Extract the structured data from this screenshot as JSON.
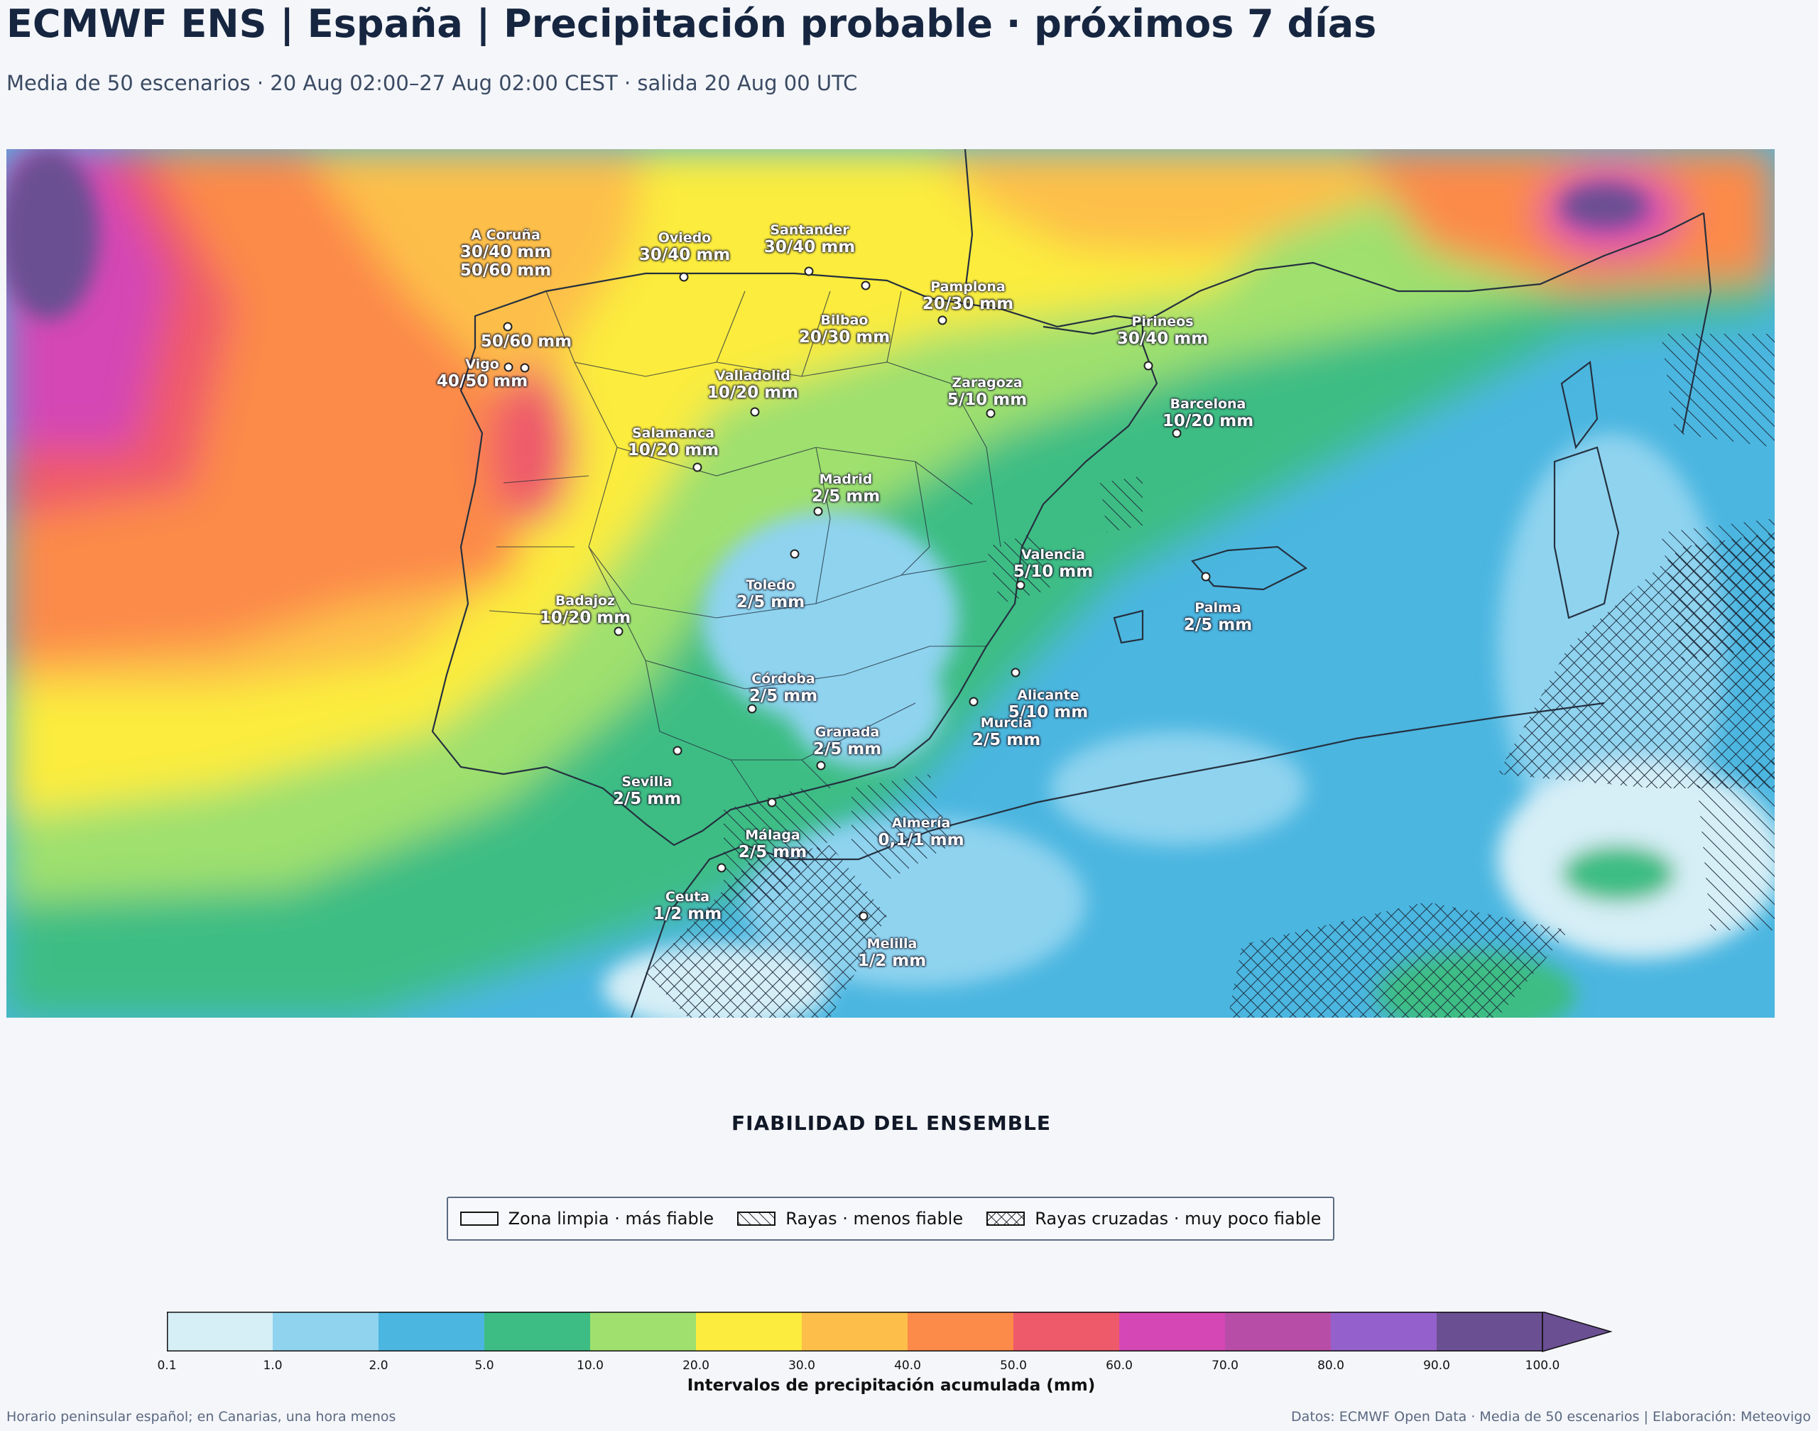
{
  "header": {
    "title": "ECMWF ENS | España | Precipitación probable · próximos 7 días",
    "subtitle": "Media de 50 escenarios · 20 Aug 02:00–27 Aug 02:00 CEST · salida 20 Aug 00 UTC"
  },
  "cities": [
    {
      "name": "A Coruña",
      "value": "30/40 mm",
      "value2": "50/60 mm"
    },
    {
      "name": "Oviedo",
      "value": "30/40 mm"
    },
    {
      "name": "Santander",
      "value": "30/40 mm"
    },
    {
      "name": "Pamplona",
      "value": "20/30 mm"
    },
    {
      "name": "Bilbao",
      "value": "20/30 mm"
    },
    {
      "name": "",
      "value": "50/60 mm"
    },
    {
      "name": "Pirineos",
      "value": "30/40 mm"
    },
    {
      "name": "Vigo",
      "value": "40/50 mm"
    },
    {
      "name": "Valladolid",
      "value": "10/20 mm"
    },
    {
      "name": "Zaragoza",
      "value": "5/10 mm"
    },
    {
      "name": "Barcelona",
      "value": "10/20 mm"
    },
    {
      "name": "Salamanca",
      "value": "10/20 mm"
    },
    {
      "name": "Madrid",
      "value": "2/5 mm"
    },
    {
      "name": "Valencia",
      "value": "5/10 mm"
    },
    {
      "name": "Toledo",
      "value": "2/5 mm"
    },
    {
      "name": "Badajoz",
      "value": "10/20 mm"
    },
    {
      "name": "Palma",
      "value": "2/5 mm"
    },
    {
      "name": "Córdoba",
      "value": "2/5 mm"
    },
    {
      "name": "Alicante",
      "value": "5/10 mm"
    },
    {
      "name": "Murcia",
      "value": "2/5 mm"
    },
    {
      "name": "Granada",
      "value": "2/5 mm"
    },
    {
      "name": "Sevilla",
      "value": "2/5 mm"
    },
    {
      "name": "Almería",
      "value": "0,1/1 mm"
    },
    {
      "name": "Málaga",
      "value": "2/5 mm"
    },
    {
      "name": "Ceuta",
      "value": "1/2 mm"
    },
    {
      "name": "Melilla",
      "value": "1/2 mm"
    }
  ],
  "reliability": {
    "title": "FIABILIDAD DEL ENSEMBLE",
    "items": [
      {
        "label": "Zona limpia · más fiable"
      },
      {
        "label": "Rayas · menos fiable"
      },
      {
        "label": "Rayas cruzadas · muy poco fiable"
      }
    ]
  },
  "colorbar": {
    "label": "Intervalos de precipitación acumulada (mm)",
    "ticks": [
      "0.1",
      "1.0",
      "2.0",
      "5.0",
      "10.0",
      "20.0",
      "30.0",
      "40.0",
      "50.0",
      "60.0",
      "70.0",
      "80.0",
      "90.0",
      "100.0"
    ],
    "colors": [
      "#d6eef6",
      "#8fd3ef",
      "#4bb6e0",
      "#3dbd84",
      "#9fe06e",
      "#fbec3d",
      "#fdbf4a",
      "#fc8a48",
      "#ee5a6a",
      "#d447b4",
      "#b84da8",
      "#9461cc",
      "#6a4f93"
    ]
  },
  "footer": {
    "left": "Horario peninsular español; en Canarias, una hora menos",
    "right": "Datos: ECMWF Open Data · Media de 50 escenarios | Elaboración: Meteovigo"
  }
}
